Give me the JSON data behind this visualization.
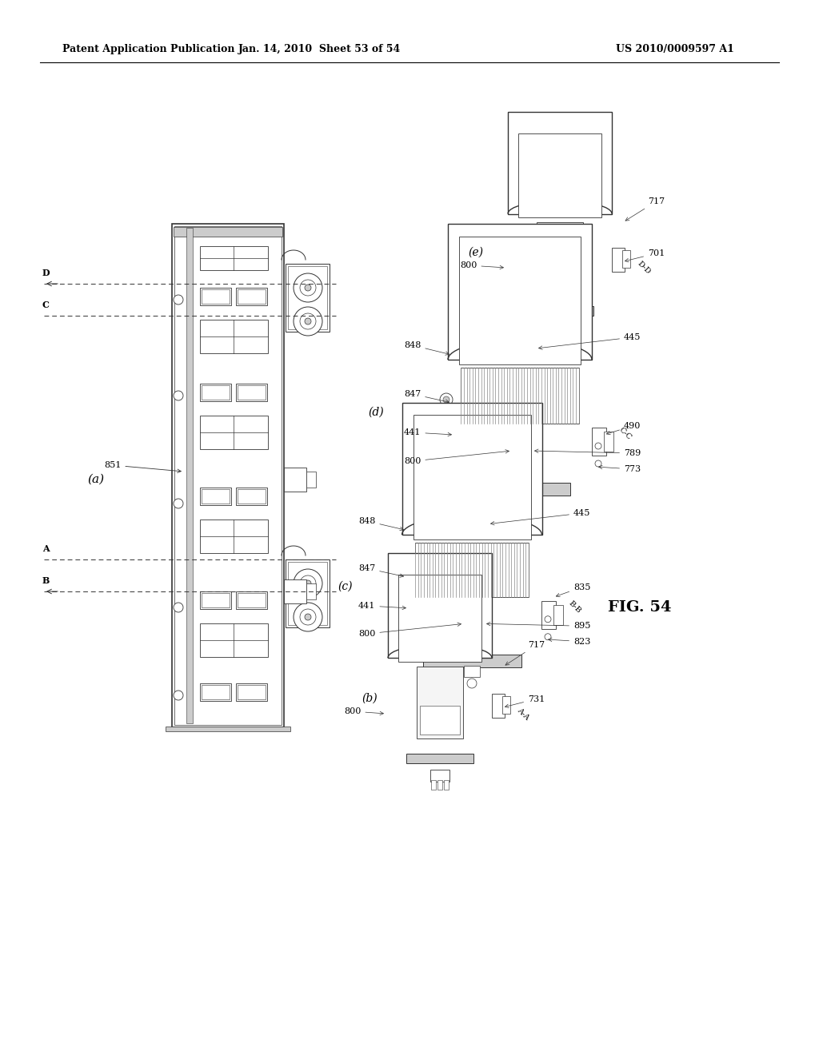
{
  "bg_color": "#ffffff",
  "header_left": "Patent Application Publication",
  "header_mid": "Jan. 14, 2010  Sheet 53 of 54",
  "header_right": "US 2010/0009597 A1",
  "fig_label": "FIG. 54",
  "line_color": "#333333",
  "gray1": "#aaaaaa",
  "gray2": "#cccccc",
  "gray3": "#888888"
}
